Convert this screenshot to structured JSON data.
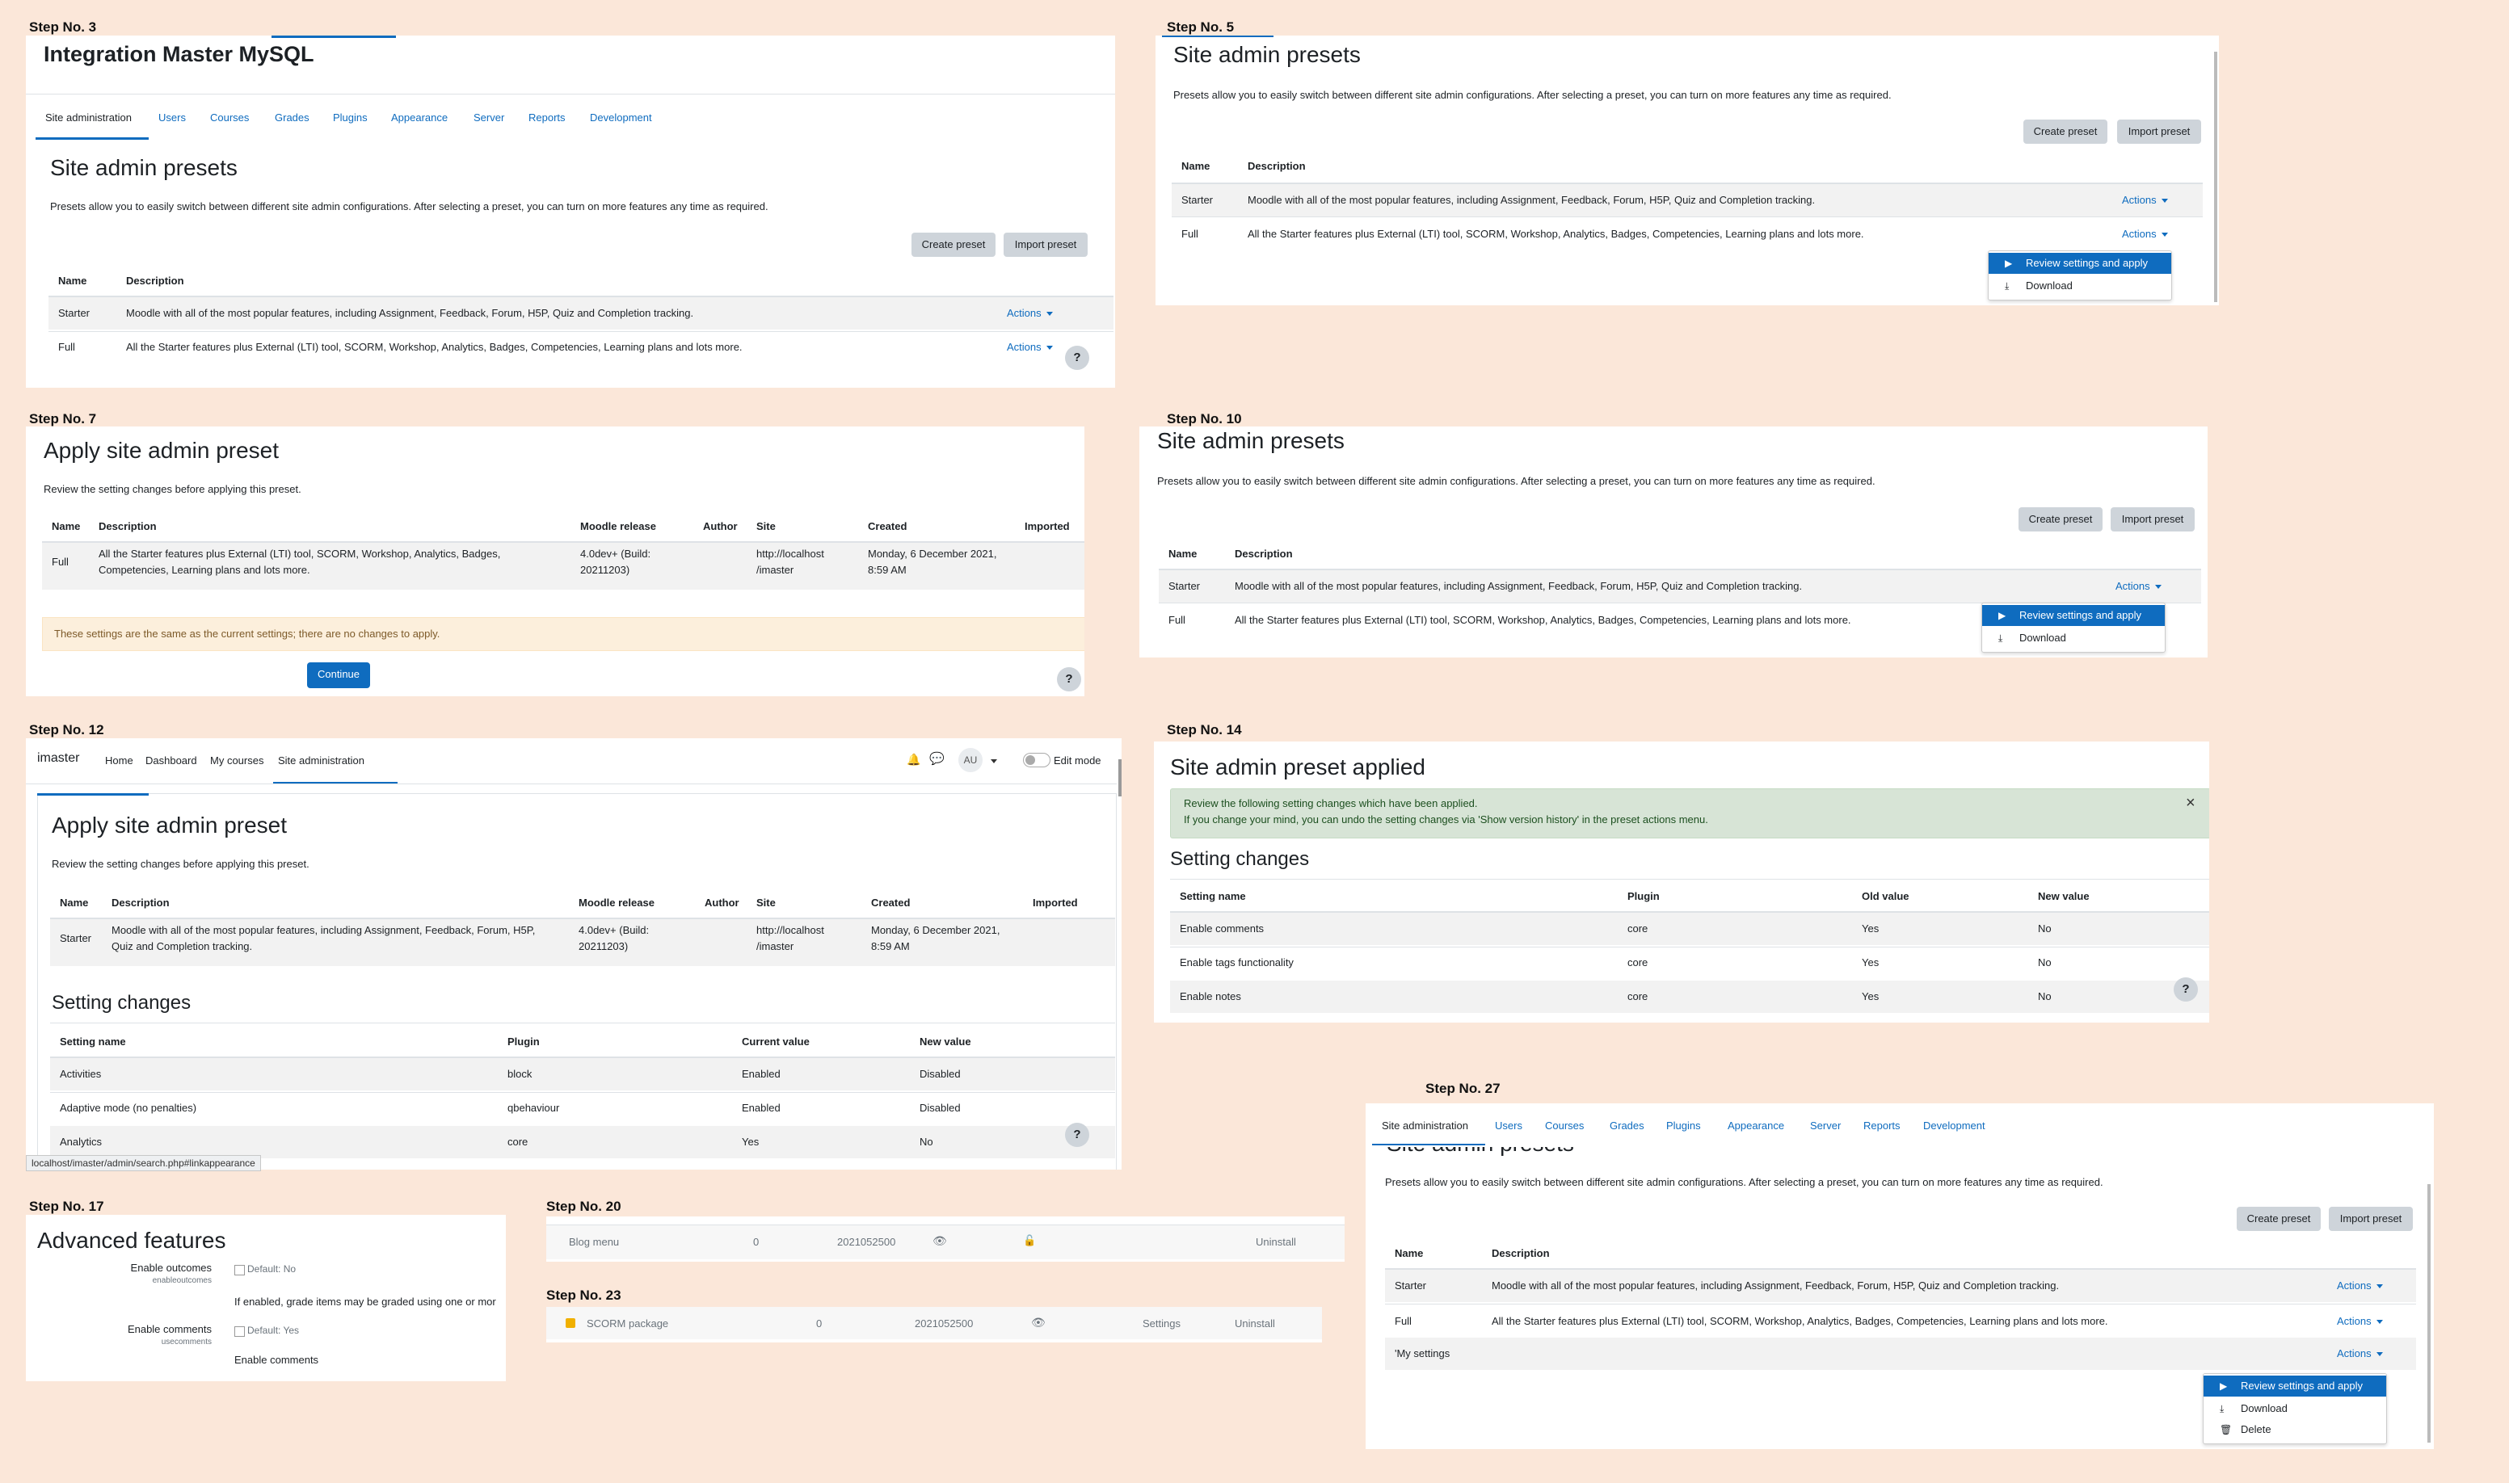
{
  "steps": {
    "s3": "Step No.  3",
    "s5": "Step No.  5",
    "s7": "Step No.  7",
    "s10": "Step No.  10",
    "s12": "Step No.  12",
    "s14": "Step No.  14",
    "s17": "Step No.  17",
    "s20": "Step No. 20",
    "s23": "Step No. 23",
    "s27": "Step No. 27"
  },
  "site_name": "Integration Master MySQL",
  "admin_tabs": [
    "Site administration",
    "Users",
    "Courses",
    "Grades",
    "Plugins",
    "Appearance",
    "Server",
    "Reports",
    "Development"
  ],
  "presets": {
    "title": "Site admin presets",
    "intro": "Presets allow you to easily switch between different site admin configurations. After selecting a preset, you can turn on more features any time as required.",
    "create_btn": "Create preset",
    "import_btn": "Import preset",
    "col_name": "Name",
    "col_desc": "Description",
    "rows": [
      {
        "name": "Starter",
        "desc": "Moodle with all of the most popular features, including Assignment, Feedback, Forum, H5P, Quiz and Completion tracking."
      },
      {
        "name": "Full",
        "desc": "All the Starter features plus External (LTI) tool, SCORM, Workshop, Analytics, Badges, Competencies, Learning plans and lots more."
      },
      {
        "name": "'My settings",
        "desc": ""
      }
    ],
    "actions": "Actions",
    "menu": {
      "review": "Review settings and apply",
      "download": "Download",
      "delete": "Delete"
    },
    "help": "?"
  },
  "apply": {
    "title": "Apply site admin preset",
    "intro": "Review the setting changes before applying this preset.",
    "cols": [
      "Name",
      "Description",
      "Moodle release",
      "Author",
      "Site",
      "Created",
      "Imported"
    ],
    "full": {
      "name": "Full",
      "desc1": "All the Starter features plus External (LTI) tool, SCORM, Workshop, Analytics, Badges,",
      "desc2": "Competencies, Learning plans and lots more.",
      "rel1": "4.0dev+ (Build:",
      "rel2": "20211203)",
      "site1": "http://localhost",
      "site2": "/imaster",
      "created1": "Monday, 6 December 2021,",
      "created2": "8:59 AM"
    },
    "warning": "These settings are the same as the current settings; there are no changes to apply.",
    "continue": "Continue",
    "starter": {
      "name": "Starter",
      "desc1": "Moodle with all of the most popular features, including Assignment, Feedback, Forum, H5P,",
      "desc2": "Quiz and Completion tracking.",
      "rel1": "4.0dev+ (Build:",
      "rel2": "20211203)",
      "site1": "http://localhost",
      "site2": "/imaster",
      "created1": "Monday, 6 December 2021,",
      "created2": "8:59 AM"
    },
    "changes_title": "Setting changes",
    "change_cols": [
      "Setting name",
      "Plugin",
      "Current value",
      "New value"
    ],
    "changes": [
      {
        "name": "Activities",
        "plugin": "block",
        "cur": "Enabled",
        "new": "Disabled"
      },
      {
        "name": "Adaptive mode (no penalties)",
        "plugin": "qbehaviour",
        "cur": "Enabled",
        "new": "Disabled"
      },
      {
        "name": "Analytics",
        "plugin": "core",
        "cur": "Yes",
        "new": "No"
      }
    ],
    "status_url": "localhost/imaster/admin/search.php#linkappearance"
  },
  "navbar": {
    "brand": "imaster",
    "links": [
      "Home",
      "Dashboard",
      "My courses",
      "Site administration"
    ],
    "avatar": "AU",
    "edit_mode": "Edit mode"
  },
  "applied": {
    "title": "Site admin preset applied",
    "alert1": "Review the following setting changes which have been applied.",
    "alert2": "If you change your mind, you can undo the setting changes via 'Show version history' in the preset actions menu.",
    "close": "×",
    "changes_title": "Setting changes",
    "cols": [
      "Setting name",
      "Plugin",
      "Old value",
      "New value"
    ],
    "rows": [
      {
        "name": "Enable comments",
        "plugin": "core",
        "old": "Yes",
        "new": "No"
      },
      {
        "name": "Enable tags functionality",
        "plugin": "core",
        "old": "Yes",
        "new": "No"
      },
      {
        "name": "Enable notes",
        "plugin": "core",
        "old": "Yes",
        "new": "No"
      }
    ]
  },
  "advanced": {
    "title": "Advanced features",
    "items": [
      {
        "label": "Enable outcomes",
        "key": "enableoutcomes",
        "default": "Default: No",
        "desc": "If enabled, grade items may be graded using one or mor"
      },
      {
        "label": "Enable comments",
        "key": "usecomments",
        "default": "Default: Yes",
        "desc": "Enable comments"
      }
    ]
  },
  "plugins20": {
    "name": "Blog menu",
    "count": "0",
    "version": "2021052500",
    "uninstall": "Uninstall"
  },
  "plugins23": {
    "name": "SCORM package",
    "count": "0",
    "version": "2021052500",
    "settings": "Settings",
    "uninstall": "Uninstall"
  }
}
